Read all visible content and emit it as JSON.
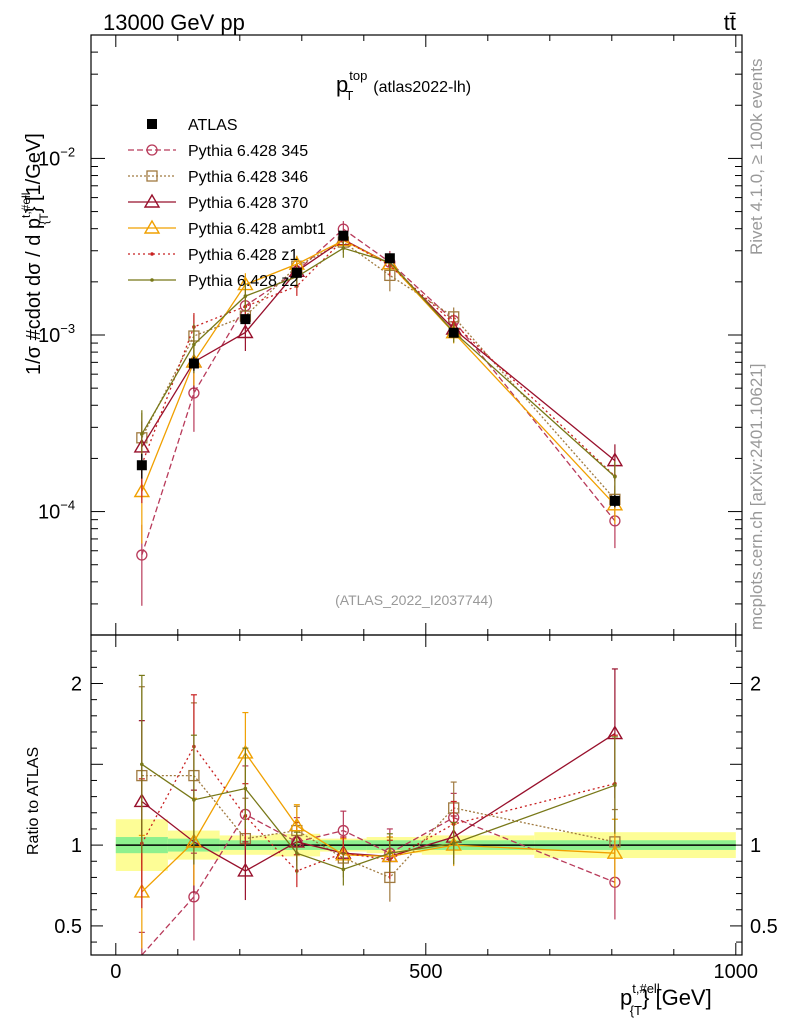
{
  "header": {
    "left": "13000 GeV pp",
    "right": "tt̄"
  },
  "side_text": {
    "rivet": "Rivet 4.1.0, ≥ 100k events",
    "mcplots": "mcplots.cern.ch [arXiv:2401.10621]"
  },
  "chart_data": {
    "type": "line",
    "title_main": "p",
    "title_sup": "top",
    "title_sub": "T",
    "title_tag": "(atlas2022-lh)",
    "analysis_id": "(ATLAS_2022_I2037744)",
    "ylabel": "1/σ #cdot dσ / d p",
    "ylabel_sup": "t,#ell",
    "ylabel_sub": "{T",
    "ylabel_tail": "} [1/GeV]",
    "ratio_ylabel": "Ratio to ATLAS",
    "xlabel": "p",
    "xlabel_sup": "t,#ell",
    "xlabel_sub": "{T",
    "xlabel_tail": "} [GeV]",
    "xlim": [
      -40,
      1010
    ],
    "ylim": [
      2e-05,
      0.05
    ],
    "yscale": "log",
    "ratio_ylim": [
      0.32,
      2.3
    ],
    "x": [
      42,
      126,
      209,
      292,
      367,
      442,
      545,
      805
    ],
    "x_tick_labels": [
      "0",
      "500",
      "1000"
    ],
    "y_tick_labels": [
      {
        "base": "10",
        "exp": "−4"
      },
      {
        "base": "10",
        "exp": "−3"
      },
      {
        "base": "10",
        "exp": "−2"
      }
    ],
    "ratio_tick_labels": [
      "0.5",
      "1",
      "2"
    ],
    "reference": {
      "name": "ATLAS",
      "values": [
        0.000183,
        0.00069,
        0.00123,
        0.00225,
        0.00365,
        0.00272,
        0.00103,
        0.000115
      ],
      "band_stat": [
        0.05,
        0.04,
        0.03,
        0.03,
        0.03,
        0.03,
        0.03,
        0.03
      ],
      "band_total": [
        0.16,
        0.09,
        0.06,
        0.07,
        0.04,
        0.05,
        0.06,
        0.08
      ]
    },
    "series": [
      {
        "name": "Pythia 6.428 345",
        "color": "#b83a5a",
        "dash": "6,3",
        "marker": "circle",
        "ratio": [
          0.31,
          0.68,
          1.19,
          1.02,
          1.09,
          0.95,
          1.17,
          0.77
        ],
        "ratio_err": [
          0.15,
          0.27,
          0.3,
          0.15,
          0.12,
          0.15,
          0.15,
          0.23
        ]
      },
      {
        "name": "Pythia 6.428 346",
        "color": "#a07a40",
        "dash": "2,2",
        "marker": "square",
        "ratio": [
          1.43,
          1.43,
          1.04,
          1.09,
          0.92,
          0.8,
          1.23,
          1.02
        ],
        "ratio_err": [
          0.55,
          0.45,
          0.25,
          0.15,
          0.12,
          0.15,
          0.16,
          0.2
        ]
      },
      {
        "name": "Pythia 6.428 370",
        "color": "#98102c",
        "dash": "",
        "marker": "triangle",
        "ratio": [
          1.27,
          1.02,
          0.84,
          1.02,
          0.95,
          0.93,
          1.05,
          1.69
        ],
        "ratio_err": [
          0.5,
          0.32,
          0.18,
          0.12,
          0.1,
          0.12,
          0.13,
          0.4
        ]
      },
      {
        "name": "Pythia 6.428 ambt1",
        "color": "#f0a000",
        "dash": "",
        "marker": "triangle",
        "ratio": [
          0.71,
          1.02,
          1.57,
          1.12,
          0.94,
          0.93,
          1.0,
          0.95
        ],
        "ratio_err": [
          0.35,
          0.27,
          0.25,
          0.13,
          0.1,
          0.12,
          0.13,
          0.21
        ]
      },
      {
        "name": "Pythia 6.428 z1",
        "color": "#c82020",
        "dash": "2,3",
        "marker": "dot",
        "ratio": [
          1.01,
          1.61,
          1.18,
          0.84,
          0.95,
          0.91,
          1.13,
          1.38
        ],
        "ratio_err": [
          0.4,
          0.32,
          0.2,
          0.1,
          0.1,
          0.12,
          0.14,
          0.3
        ]
      },
      {
        "name": "Pythia 6.428 z2",
        "color": "#787818",
        "dash": "",
        "marker": "dot",
        "ratio": [
          1.5,
          1.28,
          1.35,
          0.95,
          0.85,
          0.95,
          1.01,
          1.37
        ],
        "ratio_err": [
          0.55,
          0.4,
          0.25,
          0.13,
          0.1,
          0.12,
          0.13,
          0.3
        ]
      }
    ]
  }
}
